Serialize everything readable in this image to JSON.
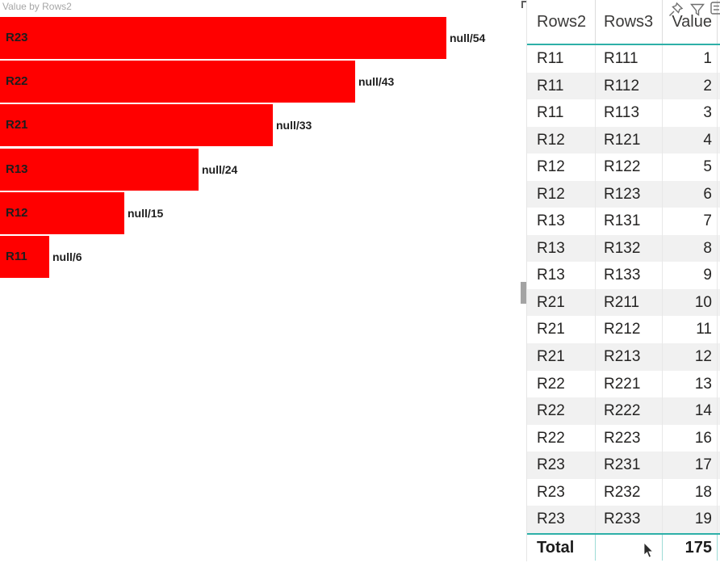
{
  "colors": {
    "bar_red": "#ff0000",
    "accent_teal": "#2eb0a8",
    "row_banding": "#f1f1f1",
    "text_dark": "#252423",
    "title_gray": "#a6a6a6",
    "icon_gray": "#6e6e6e"
  },
  "chart_data": {
    "type": "bar",
    "orientation": "horizontal",
    "title": "Value by Rows2",
    "categories": [
      "R23",
      "R22",
      "R21",
      "R13",
      "R12",
      "R11"
    ],
    "values": [
      54,
      43,
      33,
      24,
      15,
      6
    ],
    "bar_labels": [
      "null/54",
      "null/43",
      "null/33",
      "null/24",
      "null/15",
      "null/6"
    ],
    "xlim": [
      0,
      57
    ],
    "bar_color": "#ff0000",
    "grid": false,
    "legend": false
  },
  "visual_header": {
    "icons": [
      {
        "name": "pin-icon"
      },
      {
        "name": "filter-icon"
      },
      {
        "name": "more-icon-partial"
      }
    ]
  },
  "table": {
    "columns": [
      "Rows2",
      "Rows3",
      "Value"
    ],
    "rows": [
      [
        "R11",
        "R111",
        "1"
      ],
      [
        "R11",
        "R112",
        "2"
      ],
      [
        "R11",
        "R113",
        "3"
      ],
      [
        "R12",
        "R121",
        "4"
      ],
      [
        "R12",
        "R122",
        "5"
      ],
      [
        "R12",
        "R123",
        "6"
      ],
      [
        "R13",
        "R131",
        "7"
      ],
      [
        "R13",
        "R132",
        "8"
      ],
      [
        "R13",
        "R133",
        "9"
      ],
      [
        "R21",
        "R211",
        "10"
      ],
      [
        "R21",
        "R212",
        "11"
      ],
      [
        "R21",
        "R213",
        "12"
      ],
      [
        "R22",
        "R221",
        "13"
      ],
      [
        "R22",
        "R222",
        "14"
      ],
      [
        "R22",
        "R223",
        "16"
      ],
      [
        "R23",
        "R231",
        "17"
      ],
      [
        "R23",
        "R232",
        "18"
      ],
      [
        "R23",
        "R233",
        "19"
      ]
    ],
    "total": {
      "label": "Total",
      "value": "175"
    }
  }
}
